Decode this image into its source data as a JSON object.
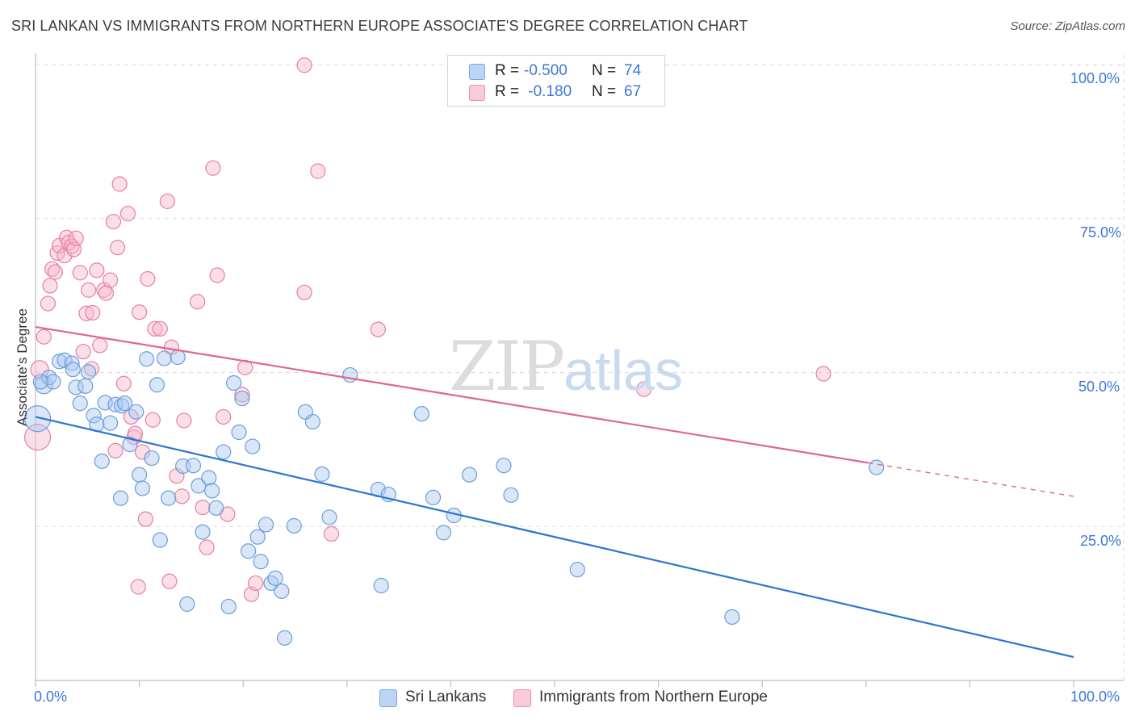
{
  "chart_data": {
    "type": "scatter",
    "title": "SRI LANKAN VS IMMIGRANTS FROM NORTHERN EUROPE ASSOCIATE'S DEGREE CORRELATION CHART",
    "source": "Source: ZipAtlas.com",
    "xlabel": "",
    "ylabel": "Associate's Degree",
    "xlim": [
      0,
      100
    ],
    "ylim": [
      0,
      100
    ],
    "x_tick_labels": [
      {
        "value": 0,
        "label": "0.0%"
      },
      {
        "value": 100,
        "label": "100.0%"
      }
    ],
    "y_tick_labels": [
      {
        "value": 100,
        "label": "100.0%"
      },
      {
        "value": 75,
        "label": "75.0%"
      },
      {
        "value": 50,
        "label": "50.0%"
      },
      {
        "value": 25,
        "label": "25.0%"
      }
    ],
    "grid": true,
    "legend": [
      {
        "r_label": "R =",
        "r_value": "-0.500",
        "n_label": "N =",
        "n_value": "74",
        "color": "#a9c8f0"
      },
      {
        "r_label": "R =",
        "r_value": " -0.180",
        "n_label": "N =",
        "n_value": "67",
        "color": "#f6b8cb"
      }
    ],
    "watermark": {
      "zip": "ZIP",
      "atlas": "atlas"
    },
    "series": [
      {
        "name": "Sri Lankans",
        "color": "#a9c8f0",
        "stroke": "#6a9ed8",
        "line_color": "#2f74d0",
        "trend": {
          "x": [
            0,
            100
          ],
          "y": [
            42.8,
            3.8
          ],
          "dash_from": null
        },
        "points": [
          {
            "x": 0.2,
            "y": 42.5,
            "r": 16
          },
          {
            "x": 0.8,
            "y": 48.0,
            "r": 11
          },
          {
            "x": 1.3,
            "y": 49.2
          },
          {
            "x": 1.7,
            "y": 48.5
          },
          {
            "x": 2.3,
            "y": 51.8
          },
          {
            "x": 2.8,
            "y": 52.0
          },
          {
            "x": 3.5,
            "y": 51.5
          },
          {
            "x": 3.6,
            "y": 50.5
          },
          {
            "x": 3.9,
            "y": 47.6
          },
          {
            "x": 4.3,
            "y": 45.0
          },
          {
            "x": 4.8,
            "y": 47.8
          },
          {
            "x": 5.1,
            "y": 50.1
          },
          {
            "x": 5.6,
            "y": 43.0
          },
          {
            "x": 5.9,
            "y": 41.6
          },
          {
            "x": 6.4,
            "y": 35.6
          },
          {
            "x": 6.7,
            "y": 45.1
          },
          {
            "x": 7.2,
            "y": 41.8
          },
          {
            "x": 7.7,
            "y": 44.8
          },
          {
            "x": 8.2,
            "y": 29.6
          },
          {
            "x": 8.3,
            "y": 44.6
          },
          {
            "x": 8.6,
            "y": 45.0
          },
          {
            "x": 9.1,
            "y": 38.3
          },
          {
            "x": 9.7,
            "y": 43.6
          },
          {
            "x": 10.0,
            "y": 33.4
          },
          {
            "x": 10.3,
            "y": 31.2
          },
          {
            "x": 10.7,
            "y": 52.2
          },
          {
            "x": 11.2,
            "y": 36.1
          },
          {
            "x": 11.7,
            "y": 48.0
          },
          {
            "x": 12.0,
            "y": 22.8
          },
          {
            "x": 12.4,
            "y": 52.3
          },
          {
            "x": 12.8,
            "y": 29.6
          },
          {
            "x": 13.7,
            "y": 52.5
          },
          {
            "x": 14.2,
            "y": 34.8
          },
          {
            "x": 14.6,
            "y": 12.4
          },
          {
            "x": 15.2,
            "y": 34.9
          },
          {
            "x": 15.7,
            "y": 31.6
          },
          {
            "x": 16.1,
            "y": 24.1
          },
          {
            "x": 16.7,
            "y": 32.9
          },
          {
            "x": 17.0,
            "y": 30.8
          },
          {
            "x": 17.4,
            "y": 28.0
          },
          {
            "x": 18.1,
            "y": 37.1
          },
          {
            "x": 18.6,
            "y": 12.0
          },
          {
            "x": 19.1,
            "y": 48.3
          },
          {
            "x": 19.6,
            "y": 40.3
          },
          {
            "x": 19.9,
            "y": 45.8
          },
          {
            "x": 20.5,
            "y": 21.0
          },
          {
            "x": 20.9,
            "y": 38.0
          },
          {
            "x": 21.4,
            "y": 23.3
          },
          {
            "x": 21.7,
            "y": 19.3
          },
          {
            "x": 22.2,
            "y": 25.3
          },
          {
            "x": 22.7,
            "y": 15.8
          },
          {
            "x": 23.1,
            "y": 16.6
          },
          {
            "x": 23.7,
            "y": 14.5
          },
          {
            "x": 24.0,
            "y": 6.9
          },
          {
            "x": 24.9,
            "y": 25.1
          },
          {
            "x": 26.0,
            "y": 43.6
          },
          {
            "x": 26.7,
            "y": 42.0
          },
          {
            "x": 27.6,
            "y": 33.5
          },
          {
            "x": 28.3,
            "y": 26.5
          },
          {
            "x": 30.3,
            "y": 49.6
          },
          {
            "x": 33.0,
            "y": 31.0
          },
          {
            "x": 33.3,
            "y": 15.4
          },
          {
            "x": 34.0,
            "y": 30.2
          },
          {
            "x": 37.2,
            "y": 43.3
          },
          {
            "x": 38.3,
            "y": 29.7
          },
          {
            "x": 39.3,
            "y": 24.0
          },
          {
            "x": 40.3,
            "y": 26.8
          },
          {
            "x": 41.8,
            "y": 33.4
          },
          {
            "x": 45.1,
            "y": 34.9
          },
          {
            "x": 45.8,
            "y": 30.1
          },
          {
            "x": 52.2,
            "y": 18.0
          },
          {
            "x": 67.1,
            "y": 10.3
          },
          {
            "x": 81.0,
            "y": 34.6
          },
          {
            "x": 0.5,
            "y": 48.5
          }
        ]
      },
      {
        "name": "Immigrants from Northern Europe",
        "color": "#f6b8cb",
        "stroke": "#e77fa0",
        "line_color": "#e0668c",
        "trend": {
          "x": [
            0,
            100
          ],
          "y": [
            57.4,
            29.9
          ],
          "dash_from": 80.2
        },
        "points": [
          {
            "x": 0.2,
            "y": 39.5,
            "r": 16
          },
          {
            "x": 0.4,
            "y": 50.5,
            "r": 11
          },
          {
            "x": 0.8,
            "y": 55.8
          },
          {
            "x": 1.2,
            "y": 61.2
          },
          {
            "x": 1.4,
            "y": 64.1
          },
          {
            "x": 1.6,
            "y": 66.8
          },
          {
            "x": 1.9,
            "y": 66.3
          },
          {
            "x": 2.1,
            "y": 69.4
          },
          {
            "x": 2.3,
            "y": 70.6
          },
          {
            "x": 2.8,
            "y": 69.0
          },
          {
            "x": 3.0,
            "y": 71.9
          },
          {
            "x": 3.2,
            "y": 71.1
          },
          {
            "x": 3.5,
            "y": 70.5
          },
          {
            "x": 3.7,
            "y": 70.0
          },
          {
            "x": 3.9,
            "y": 71.8
          },
          {
            "x": 4.3,
            "y": 66.2
          },
          {
            "x": 4.6,
            "y": 53.4
          },
          {
            "x": 4.9,
            "y": 59.6
          },
          {
            "x": 5.1,
            "y": 63.4
          },
          {
            "x": 5.5,
            "y": 59.7
          },
          {
            "x": 5.4,
            "y": 50.6
          },
          {
            "x": 5.9,
            "y": 66.6
          },
          {
            "x": 6.2,
            "y": 54.4
          },
          {
            "x": 6.6,
            "y": 63.4
          },
          {
            "x": 6.8,
            "y": 62.9
          },
          {
            "x": 7.2,
            "y": 65.0
          },
          {
            "x": 7.5,
            "y": 74.5
          },
          {
            "x": 7.7,
            "y": 37.3
          },
          {
            "x": 7.9,
            "y": 70.3
          },
          {
            "x": 8.1,
            "y": 80.6
          },
          {
            "x": 8.5,
            "y": 48.2
          },
          {
            "x": 8.9,
            "y": 75.8
          },
          {
            "x": 9.2,
            "y": 42.8
          },
          {
            "x": 9.5,
            "y": 39.5
          },
          {
            "x": 9.6,
            "y": 40.1
          },
          {
            "x": 9.9,
            "y": 15.2
          },
          {
            "x": 10.0,
            "y": 59.8
          },
          {
            "x": 10.3,
            "y": 37.1
          },
          {
            "x": 10.6,
            "y": 26.2
          },
          {
            "x": 10.8,
            "y": 65.2
          },
          {
            "x": 11.3,
            "y": 42.3
          },
          {
            "x": 11.5,
            "y": 57.1
          },
          {
            "x": 12.0,
            "y": 57.1
          },
          {
            "x": 12.7,
            "y": 77.8
          },
          {
            "x": 12.9,
            "y": 16.1
          },
          {
            "x": 13.1,
            "y": 54.1
          },
          {
            "x": 13.6,
            "y": 33.2
          },
          {
            "x": 14.1,
            "y": 29.9
          },
          {
            "x": 14.3,
            "y": 42.2
          },
          {
            "x": 15.6,
            "y": 61.5
          },
          {
            "x": 16.1,
            "y": 28.1
          },
          {
            "x": 16.5,
            "y": 21.6
          },
          {
            "x": 17.1,
            "y": 83.2
          },
          {
            "x": 17.5,
            "y": 65.8
          },
          {
            "x": 18.1,
            "y": 42.8
          },
          {
            "x": 18.5,
            "y": 27.0
          },
          {
            "x": 19.9,
            "y": 46.4
          },
          {
            "x": 20.2,
            "y": 50.8
          },
          {
            "x": 20.8,
            "y": 14.0
          },
          {
            "x": 21.2,
            "y": 15.8
          },
          {
            "x": 25.9,
            "y": 99.9
          },
          {
            "x": 25.9,
            "y": 63.0
          },
          {
            "x": 27.2,
            "y": 82.7
          },
          {
            "x": 28.5,
            "y": 23.8
          },
          {
            "x": 33.0,
            "y": 57.0
          },
          {
            "x": 58.6,
            "y": 47.3
          },
          {
            "x": 75.9,
            "y": 49.8
          }
        ]
      }
    ]
  }
}
